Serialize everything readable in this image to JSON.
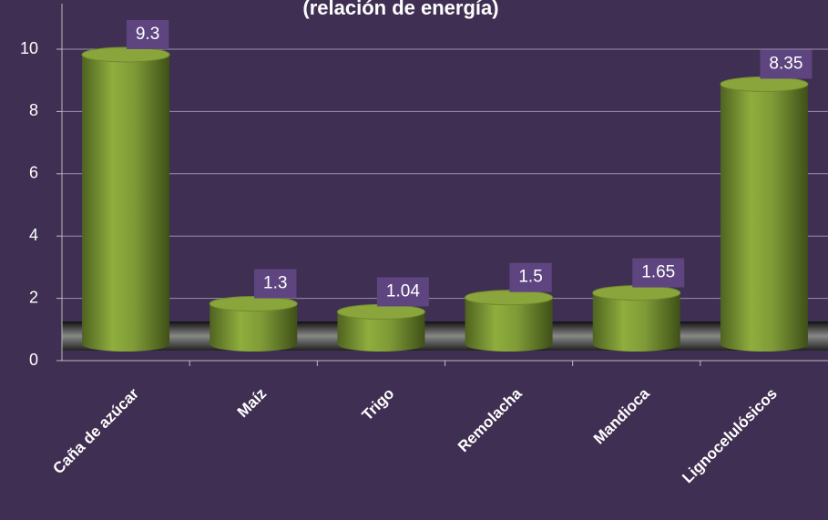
{
  "chart_data": {
    "type": "bar",
    "title": "(relación de energía)",
    "categories": [
      "Caña de azúcar",
      "Maíz",
      "Trigo",
      "Remolacha",
      "Mandioca",
      "Lignocelulósicos"
    ],
    "values": [
      9.3,
      1.3,
      1.04,
      1.5,
      1.65,
      8.35
    ],
    "color": "#7e9a36",
    "ylim": [
      0,
      10
    ],
    "yticks": [
      0,
      2,
      4,
      6,
      8,
      10
    ],
    "grid": true
  }
}
